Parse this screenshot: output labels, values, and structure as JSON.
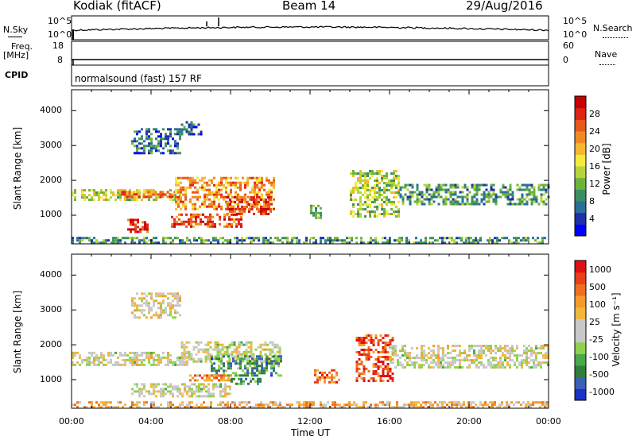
{
  "header": {
    "radar": "Kodiak (fitACF)",
    "beam": "Beam 14",
    "date": "29/Aug/2016"
  },
  "top_panels": {
    "nsky_label": "N.Sky",
    "nsearch_label": "N.Search",
    "nsky_ticks": [
      "10^5",
      "10^0"
    ],
    "nsearch_ticks": [
      "10^5",
      "10^0"
    ],
    "freq_label": "Freq.",
    "freq_unit": "[MHz]",
    "freq_ticks": [
      "18",
      "8"
    ],
    "nave_label": "Nave",
    "nave_ticks": [
      "60",
      "0"
    ],
    "cpid_label": "CPID",
    "cpid_value": "normalsound (fast) 157 RF"
  },
  "chart_data": [
    {
      "type": "heatmap",
      "name": "power",
      "ylabel": "Slant Range [km]",
      "yticks": [
        1000,
        2000,
        3000,
        4000
      ],
      "ylim": [
        180,
        4600
      ],
      "xlim": [
        0,
        24
      ],
      "colorbar": {
        "label": "Power [dB]",
        "ticks": [
          4,
          8,
          12,
          16,
          20,
          24,
          28
        ],
        "colors": [
          "#0000ff",
          "#1e2fa8",
          "#2a6e9a",
          "#3d8f62",
          "#6db43c",
          "#b7d43a",
          "#f2ea3d",
          "#f5b72d",
          "#ef8a22",
          "#e9581c",
          "#de2412",
          "#c80000"
        ]
      },
      "regions": [
        {
          "t0": 0.0,
          "t1": 5.5,
          "r0": 1450,
          "r1": 1750,
          "level": 0.5
        },
        {
          "t0": 2.5,
          "t1": 5.3,
          "r0": 1500,
          "r1": 1700,
          "level": 0.75
        },
        {
          "t0": 5.2,
          "t1": 10.2,
          "r0": 1150,
          "r1": 2100,
          "level": 0.7
        },
        {
          "t0": 7.8,
          "t1": 10.0,
          "r0": 1050,
          "r1": 1550,
          "level": 0.85
        },
        {
          "t0": 5.0,
          "t1": 8.6,
          "r0": 650,
          "r1": 1050,
          "level": 0.8
        },
        {
          "t0": 2.8,
          "t1": 3.8,
          "r0": 500,
          "r1": 900,
          "level": 0.9
        },
        {
          "t0": 3.0,
          "t1": 5.5,
          "r0": 2800,
          "r1": 3500,
          "level": 0.2
        },
        {
          "t0": 5.5,
          "t1": 6.5,
          "r0": 3300,
          "r1": 3700,
          "level": 0.2
        },
        {
          "t0": 14.0,
          "t1": 16.5,
          "r0": 1000,
          "r1": 2300,
          "level": 0.45
        },
        {
          "t0": 16.5,
          "t1": 24.0,
          "r0": 1350,
          "r1": 1900,
          "level": 0.3
        },
        {
          "t0": 12.0,
          "t1": 12.5,
          "r0": 900,
          "r1": 1300,
          "level": 0.4
        },
        {
          "t0": 0.0,
          "t1": 24.0,
          "r0": 200,
          "r1": 380,
          "level": 0.3
        }
      ]
    },
    {
      "type": "heatmap",
      "name": "velocity",
      "ylabel": "Slant Range [km]",
      "xlabel": "Time UT",
      "yticks": [
        1000,
        2000,
        3000,
        4000
      ],
      "ylim": [
        180,
        4600
      ],
      "xlim": [
        0,
        24
      ],
      "xticks": [
        "00:00",
        "04:00",
        "08:00",
        "12:00",
        "16:00",
        "20:00",
        "00:00"
      ],
      "colorbar": {
        "label": "Velocity [m s⁻¹]",
        "ticks": [
          1000,
          500,
          100,
          25,
          -25,
          -100,
          -500,
          -1000
        ],
        "colors": [
          "#1a32c8",
          "#3a60b8",
          "#2f7f3a",
          "#49a84a",
          "#8fd14f",
          "#c8c8c8",
          "#c8c8c8",
          "#f2b73a",
          "#f59a2c",
          "#ef6f1f",
          "#e8401a",
          "#e01010"
        ]
      },
      "regions": [
        {
          "t0": 0.0,
          "t1": 6.0,
          "r0": 1450,
          "r1": 1800,
          "level": 0.5
        },
        {
          "t0": 5.5,
          "t1": 10.5,
          "r0": 1500,
          "r1": 2100,
          "level": 0.5
        },
        {
          "t0": 7.0,
          "t1": 10.5,
          "r0": 1100,
          "r1": 1700,
          "level": 0.25
        },
        {
          "t0": 5.8,
          "t1": 8.0,
          "r0": 950,
          "r1": 1150,
          "level": 0.75
        },
        {
          "t0": 8.0,
          "t1": 9.5,
          "r0": 900,
          "r1": 1050,
          "level": 0.3
        },
        {
          "t0": 3.0,
          "t1": 8.0,
          "r0": 550,
          "r1": 900,
          "level": 0.5
        },
        {
          "t0": 14.3,
          "t1": 16.2,
          "r0": 1000,
          "r1": 2300,
          "level": 0.85
        },
        {
          "t0": 16.0,
          "t1": 24.0,
          "r0": 1350,
          "r1": 2000,
          "level": 0.5
        },
        {
          "t0": 12.2,
          "t1": 13.5,
          "r0": 900,
          "r1": 1300,
          "level": 0.8
        },
        {
          "t0": 3.0,
          "t1": 5.5,
          "r0": 2800,
          "r1": 3500,
          "level": 0.55
        },
        {
          "t0": 0.0,
          "t1": 24.0,
          "r0": 200,
          "r1": 380,
          "level": 0.65
        }
      ]
    }
  ]
}
